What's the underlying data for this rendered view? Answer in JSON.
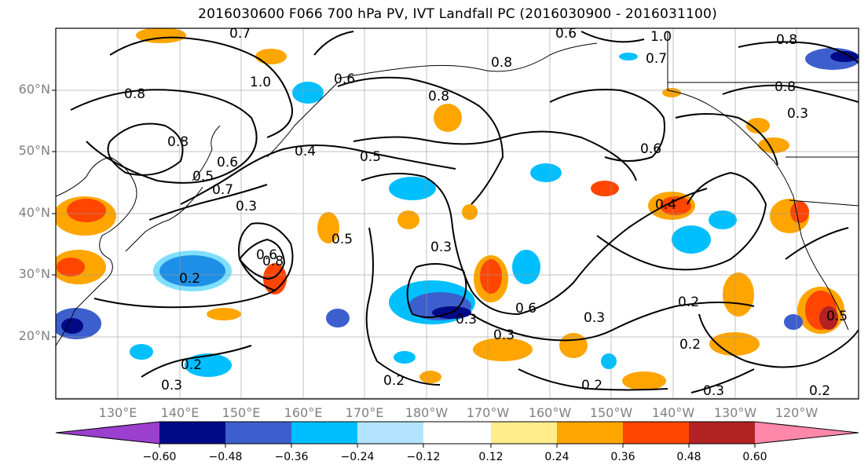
{
  "title": "2016030600 F066 700 hPa PV, IVT Landfall PC (2016030900 - 2016031100)",
  "axes": {
    "lat_labels": [
      "60°N",
      "50°N",
      "40°N",
      "30°N",
      "20°N"
    ],
    "lon_labels": [
      "130°E",
      "140°E",
      "150°E",
      "160°E",
      "170°E",
      "180°W",
      "170°W",
      "160°W",
      "150°W",
      "140°W",
      "130°W",
      "120°W"
    ]
  },
  "colorbar": {
    "tick_labels": [
      "−0.60",
      "−0.48",
      "−0.36",
      "−0.24",
      "−0.12",
      "0.12",
      "0.24",
      "0.36",
      "0.48",
      "0.60"
    ],
    "colors": [
      "#9b3fcf",
      "#000a87",
      "#3c5fcd",
      "#00bfff",
      "#b2e4ff",
      "#ffffff",
      "#ffec8b",
      "#ffa500",
      "#ff4500",
      "#b22222",
      "#ff88aa"
    ]
  },
  "contour_labels": [
    "0.7",
    "0.6",
    "1.0",
    "0.8",
    "0.6",
    "0.8",
    "0.8",
    "0.8",
    "0.3",
    "0.8",
    "1.0",
    "0.6",
    "0.8",
    "0.5",
    "0.4",
    "0.6",
    "0.5",
    "0.7",
    "0.3",
    "0.6",
    "0.5",
    "0.3",
    "0.2",
    "0.8",
    "0.3",
    "0.6",
    "0.3",
    "0.2",
    "0.4",
    "0.2",
    "0.3",
    "0.2",
    "0.2",
    "0.3",
    "0.2",
    "0.5",
    "0.2",
    "0.3",
    "0.7"
  ]
}
